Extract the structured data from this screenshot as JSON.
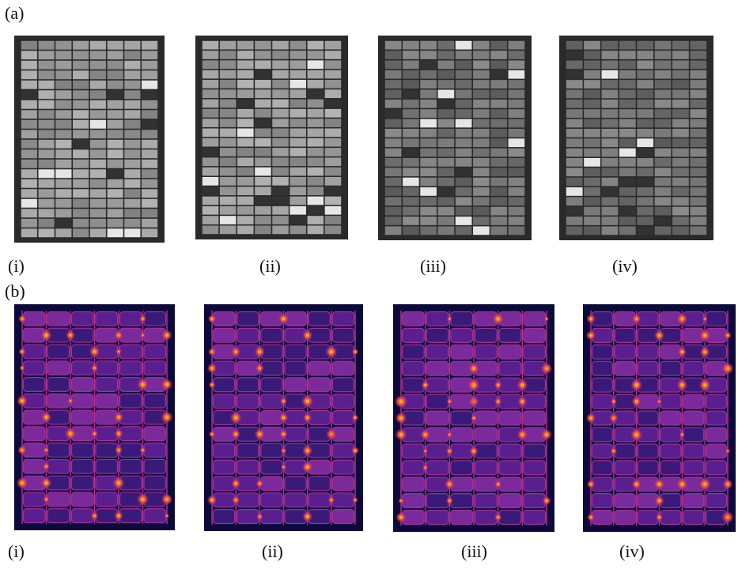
{
  "panel_a": {
    "label": "(a)",
    "captions": [
      "(i)",
      "(ii)",
      "(iii)",
      "(iv)"
    ]
  },
  "panel_b": {
    "label": "(b)",
    "captions": [
      "(i)",
      "(ii)",
      "(iii)",
      "(iv)"
    ]
  }
}
